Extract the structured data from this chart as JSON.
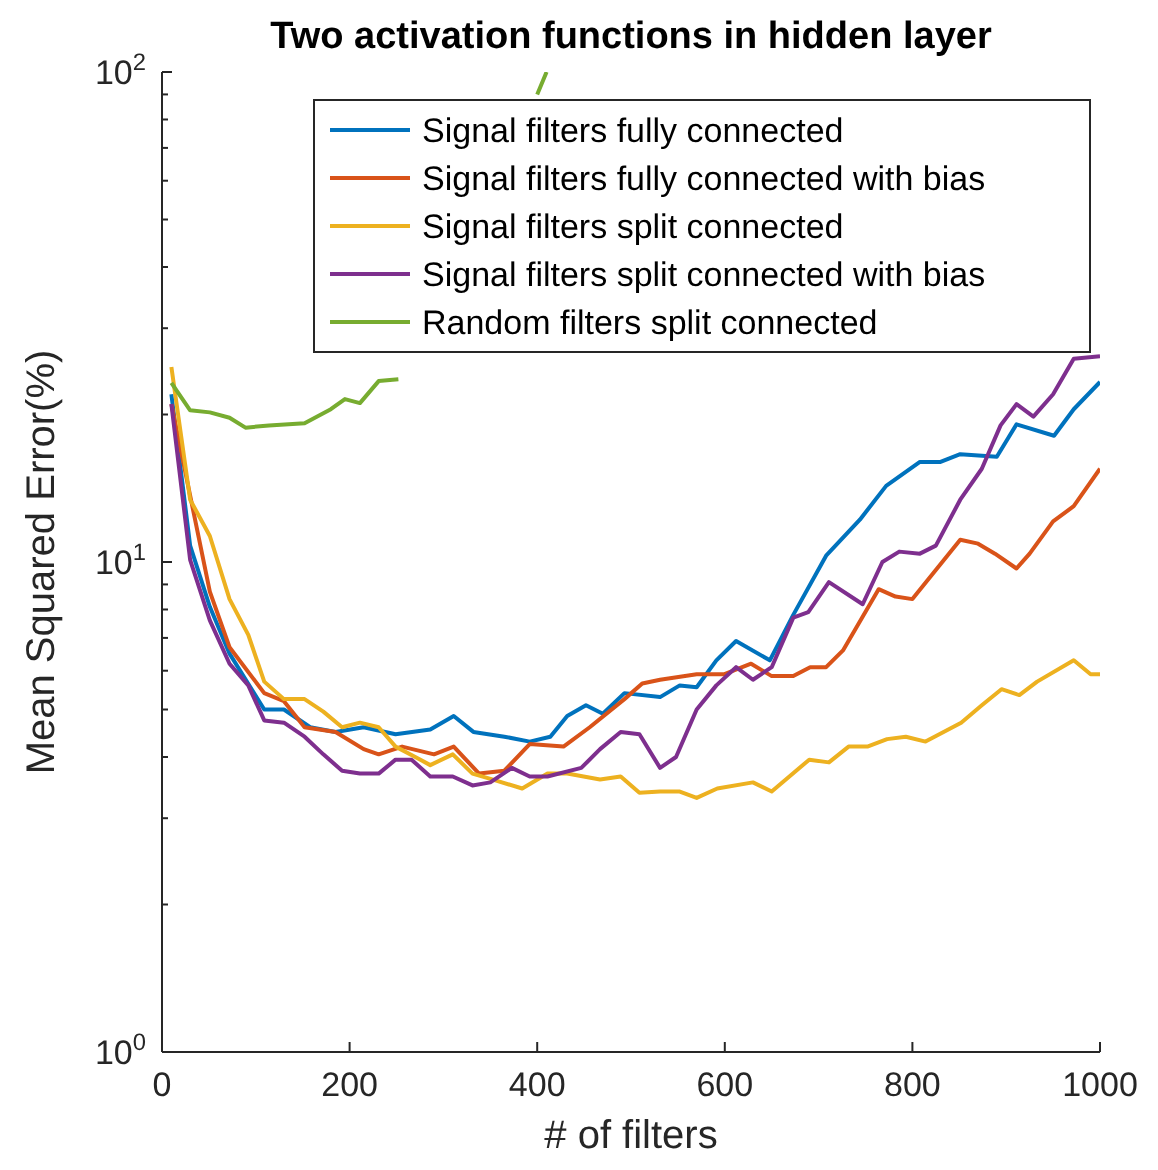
{
  "chart_data": {
    "type": "line",
    "title": "Two activation functions in hidden layer",
    "xlabel": "# of filters",
    "ylabel": "Mean Squared Error(%)",
    "log": "y",
    "xlim": [
      0,
      1000
    ],
    "xticks": [
      0,
      200,
      400,
      600,
      800,
      1000
    ],
    "ylim": [
      1,
      100
    ],
    "yticks": [
      {
        "value": 1,
        "label": "10$^{0}$"
      },
      {
        "value": 2,
        "label": null
      },
      {
        "value": 3,
        "label": null
      },
      {
        "value": 4,
        "label": null
      },
      {
        "value": 5,
        "label": null
      },
      {
        "value": 6,
        "label": null
      },
      {
        "value": 7,
        "label": null
      },
      {
        "value": 8,
        "label": null
      },
      {
        "value": 9,
        "label": null
      },
      {
        "value": 10,
        "label": "10$^{1}$"
      },
      {
        "value": 20,
        "label": null
      },
      {
        "value": 30,
        "label": null
      },
      {
        "value": 40,
        "label": null
      },
      {
        "value": 50,
        "label": null
      },
      {
        "value": 60,
        "label": null
      },
      {
        "value": 70,
        "label": null
      },
      {
        "value": 80,
        "label": null
      },
      {
        "value": 90,
        "label": null
      },
      {
        "value": 100,
        "label": "10$^{2}$"
      }
    ],
    "grid": false,
    "legend": "top right",
    "line_style": "solid",
    "series": [
      {
        "name": "Signal filters fully connected",
        "color": "#0072bd",
        "x": [
          10,
          30,
          51,
          72,
          109,
          130,
          158,
          185,
          215,
          249,
          286,
          311,
          332,
          365,
          392,
          414,
          432,
          452,
          470,
          493,
          531,
          552,
          570,
          591,
          612,
          648,
          673,
          708,
          744,
          772,
          808,
          830,
          851,
          890,
          911,
          951,
          972,
          1000
        ],
        "values": [
          22,
          10.8,
          8.1,
          6.5,
          5.0,
          5.0,
          4.6,
          4.5,
          4.6,
          4.45,
          4.55,
          4.85,
          4.5,
          4.4,
          4.3,
          4.4,
          4.85,
          5.1,
          4.9,
          5.4,
          5.3,
          5.6,
          5.55,
          6.3,
          6.9,
          6.3,
          7.8,
          10.3,
          12.2,
          14.3,
          16.0,
          16.0,
          16.6,
          16.4,
          19.1,
          18.1,
          20.5,
          23.3
        ]
      },
      {
        "name": "Signal filters fully connected with bias",
        "color": "#d95319",
        "x": [
          10,
          51,
          72,
          109,
          130,
          152,
          185,
          215,
          231,
          256,
          290,
          311,
          338,
          365,
          392,
          428,
          456,
          493,
          512,
          531,
          570,
          599,
          628,
          650,
          673,
          691,
          708,
          726,
          764,
          782,
          800,
          851,
          870,
          888,
          911,
          925,
          950,
          972,
          1000
        ],
        "values": [
          21,
          8.7,
          6.7,
          5.4,
          5.2,
          4.6,
          4.5,
          4.15,
          4.05,
          4.2,
          4.05,
          4.2,
          3.7,
          3.75,
          4.25,
          4.2,
          4.6,
          5.25,
          5.65,
          5.75,
          5.9,
          5.9,
          6.2,
          5.85,
          5.85,
          6.1,
          6.1,
          6.6,
          8.8,
          8.5,
          8.4,
          11.1,
          10.9,
          10.4,
          9.7,
          10.4,
          12.1,
          13.0,
          15.5
        ]
      },
      {
        "name": "Signal filters split connected",
        "color": "#edb120",
        "x": [
          10,
          30,
          51,
          72,
          92,
          109,
          130,
          152,
          172,
          192,
          211,
          231,
          249,
          270,
          286,
          310,
          331,
          352,
          384,
          411,
          432,
          467,
          489,
          509,
          531,
          552,
          570,
          592,
          630,
          650,
          690,
          711,
          732,
          752,
          773,
          793,
          814,
          852,
          874,
          895,
          914,
          933,
          972,
          990,
          1000
        ],
        "values": [
          25,
          13.4,
          11.3,
          8.4,
          7.1,
          5.7,
          5.25,
          5.25,
          4.95,
          4.6,
          4.7,
          4.6,
          4.2,
          4.0,
          3.85,
          4.05,
          3.7,
          3.6,
          3.45,
          3.7,
          3.7,
          3.6,
          3.65,
          3.38,
          3.4,
          3.4,
          3.3,
          3.45,
          3.55,
          3.4,
          3.95,
          3.9,
          4.2,
          4.2,
          4.35,
          4.4,
          4.3,
          4.7,
          5.1,
          5.5,
          5.35,
          5.7,
          6.3,
          5.9,
          5.9
        ]
      },
      {
        "name": "Signal filters split connected with bias",
        "color": "#7e2f8e",
        "x": [
          10,
          30,
          51,
          72,
          92,
          109,
          130,
          152,
          172,
          192,
          211,
          231,
          249,
          266,
          286,
          310,
          331,
          350,
          373,
          392,
          411,
          447,
          467,
          489,
          509,
          531,
          548,
          570,
          591,
          612,
          630,
          650,
          673,
          689,
          711,
          747,
          768,
          786,
          808,
          825,
          851,
          874,
          894,
          911,
          929,
          950,
          972,
          1000
        ],
        "values": [
          21,
          10.1,
          7.6,
          6.2,
          5.6,
          4.75,
          4.7,
          4.4,
          4.05,
          3.75,
          3.7,
          3.7,
          3.95,
          3.95,
          3.65,
          3.65,
          3.5,
          3.55,
          3.8,
          3.65,
          3.65,
          3.8,
          4.15,
          4.5,
          4.45,
          3.8,
          4.0,
          5.0,
          5.6,
          6.1,
          5.75,
          6.1,
          7.7,
          7.9,
          9.1,
          8.2,
          10.0,
          10.5,
          10.4,
          10.8,
          13.4,
          15.5,
          19.0,
          21.0,
          19.8,
          22,
          26,
          26.3
        ]
      },
      {
        "name": "Random filters split connected",
        "color": "#77ac30",
        "x": [
          10,
          30,
          51,
          72,
          89,
          114,
          152,
          180,
          195,
          211,
          231,
          252,
          330,
          400,
          410
        ],
        "values": [
          23.2,
          20.4,
          20.2,
          19.7,
          18.8,
          19.0,
          19.2,
          20.5,
          21.5,
          21.1,
          23.4,
          23.6,
          null,
          90,
          100
        ]
      }
    ]
  }
}
